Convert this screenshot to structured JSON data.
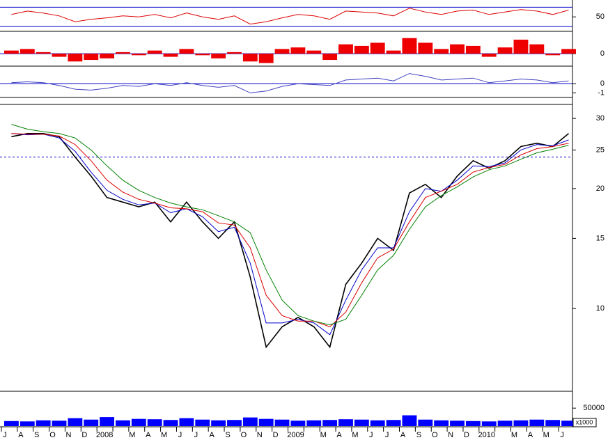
{
  "chart_data": [
    {
      "type": "line",
      "log_scale": true,
      "categories": [
        "J",
        "A",
        "S",
        "O",
        "N",
        "D",
        "2008",
        null,
        "M",
        "A",
        "M",
        "J",
        "J",
        "A",
        "S",
        "O",
        "N",
        "D",
        "2009",
        null,
        "M",
        "A",
        "M",
        "J",
        "J",
        "A",
        "S",
        "O",
        "N",
        "D",
        "2010",
        null,
        "M",
        "A",
        "M",
        "J"
      ],
      "series": [
        {
          "name": "Close",
          "color": "#000000",
          "values": [
            27,
            27.5,
            27.5,
            27,
            24,
            21.5,
            19,
            18.5,
            18,
            18.5,
            16.5,
            18.5,
            16.5,
            15,
            16.5,
            12,
            8,
            9,
            9.5,
            9,
            8,
            11.5,
            13,
            15,
            14,
            19.5,
            20.5,
            19,
            21.5,
            23.5,
            22.5,
            23.5,
            25.5,
            26,
            25.5,
            27.5
          ]
        },
        {
          "name": "MA short",
          "color": "#0000cc",
          "values": [
            27.5,
            27.3,
            27.4,
            26.8,
            24.8,
            22,
            19.8,
            18.8,
            18.2,
            18.4,
            17.4,
            17.8,
            17,
            15.6,
            16,
            13,
            9.2,
            9.2,
            9.4,
            9.2,
            8.6,
            10.5,
            12.5,
            14.2,
            14.2,
            17.5,
            20,
            19.7,
            21,
            22.8,
            22.7,
            23.2,
            25,
            25.8,
            25.6,
            26.5
          ]
        },
        {
          "name": "MA medium",
          "color": "#dd0000",
          "values": [
            27.5,
            27.4,
            27.4,
            27.1,
            25.8,
            23.5,
            21,
            19.6,
            18.8,
            18.4,
            17.9,
            17.8,
            17.5,
            16.4,
            16.2,
            14.2,
            10.8,
            9.6,
            9.3,
            9.3,
            9,
            9.8,
            11.6,
            13.4,
            14.1,
            16.5,
            19,
            19.7,
            20.5,
            22,
            22.6,
            23,
            24.3,
            25.2,
            25.5,
            26
          ]
        },
        {
          "name": "MA long",
          "color": "#008000",
          "values": [
            29,
            28.2,
            27.8,
            27.5,
            26.8,
            25,
            22.8,
            21,
            19.8,
            19,
            18.4,
            18,
            17.7,
            17.1,
            16.5,
            15.5,
            12.5,
            10.5,
            9.6,
            9.3,
            9.1,
            9.4,
            10.8,
            12.5,
            13.6,
            15.8,
            18,
            19.2,
            20.2,
            21.4,
            22.3,
            22.8,
            23.7,
            24.6,
            25.1,
            25.7
          ]
        }
      ],
      "ylim": [
        6.25,
        31.5
      ],
      "yticks": [
        10,
        15,
        20,
        25,
        30
      ],
      "reference_lines": [
        24
      ],
      "reference_line_style": "dashed",
      "reference_color": "#0000cc"
    },
    {
      "type": "line",
      "series": [
        {
          "name": "RSI",
          "color": "#dd0000",
          "values": [
            55,
            62,
            58,
            52,
            40,
            45,
            48,
            52,
            50,
            55,
            48,
            58,
            50,
            45,
            52,
            35,
            40,
            48,
            55,
            52,
            45,
            62,
            60,
            58,
            52,
            68,
            60,
            55,
            62,
            64,
            55,
            60,
            65,
            62,
            55,
            64
          ]
        }
      ],
      "ylim": [
        20,
        85
      ],
      "yticks": [
        50
      ],
      "reference_lines": [
        30,
        70
      ],
      "reference_line_style": "solid",
      "reference_color": "#0000cc"
    },
    {
      "type": "bar",
      "color": "#ee0000",
      "values": [
        0.2,
        0.3,
        0.1,
        -0.2,
        -0.5,
        -0.4,
        -0.3,
        0.1,
        -0.1,
        0.2,
        -0.2,
        0.3,
        -0.1,
        -0.3,
        0.1,
        -0.5,
        -0.6,
        0.3,
        0.4,
        0.2,
        -0.4,
        0.6,
        0.5,
        0.7,
        0.2,
        1.0,
        0.7,
        0.3,
        0.6,
        0.5,
        -0.2,
        0.4,
        0.9,
        0.6,
        -0.1,
        0.3
      ],
      "ylim": [
        -0.8,
        1.3
      ],
      "yticks": [
        0
      ],
      "reference_lines": [
        0
      ],
      "reference_line_style": "solid",
      "reference_color": "#0000cc"
    },
    {
      "type": "line",
      "series": [
        {
          "name": "Oscillator",
          "color": "#4040c0",
          "values": [
            0.1,
            0.2,
            0.1,
            -0.2,
            -0.6,
            -0.7,
            -0.5,
            -0.2,
            -0.3,
            0.0,
            -0.2,
            0.1,
            -0.2,
            -0.4,
            -0.2,
            -1.0,
            -0.8,
            -0.3,
            0.0,
            -0.1,
            -0.2,
            0.4,
            0.5,
            0.6,
            0.3,
            1.1,
            0.8,
            0.4,
            0.5,
            0.6,
            0.1,
            0.3,
            0.5,
            0.4,
            0.1,
            0.3
          ]
        }
      ],
      "ylim": [
        -1.5,
        1.75
      ],
      "yticks": [
        0,
        -1
      ],
      "reference_lines": [
        0
      ],
      "reference_line_style": "solid",
      "reference_color": "#0000cc"
    },
    {
      "type": "bar",
      "color": "#0000ff",
      "unit_label": "x1000",
      "values": [
        14000,
        13000,
        16000,
        15000,
        22000,
        18000,
        25000,
        16000,
        20000,
        19000,
        17000,
        22000,
        18000,
        16000,
        17000,
        24000,
        20000,
        18000,
        15000,
        16000,
        17000,
        19000,
        18000,
        16000,
        17000,
        30000,
        18000,
        16000,
        15000,
        14000,
        13000,
        15000,
        16000,
        18000,
        17000,
        15000
      ],
      "ylim": [
        0,
        95000
      ],
      "yticks": [
        50000
      ]
    }
  ]
}
